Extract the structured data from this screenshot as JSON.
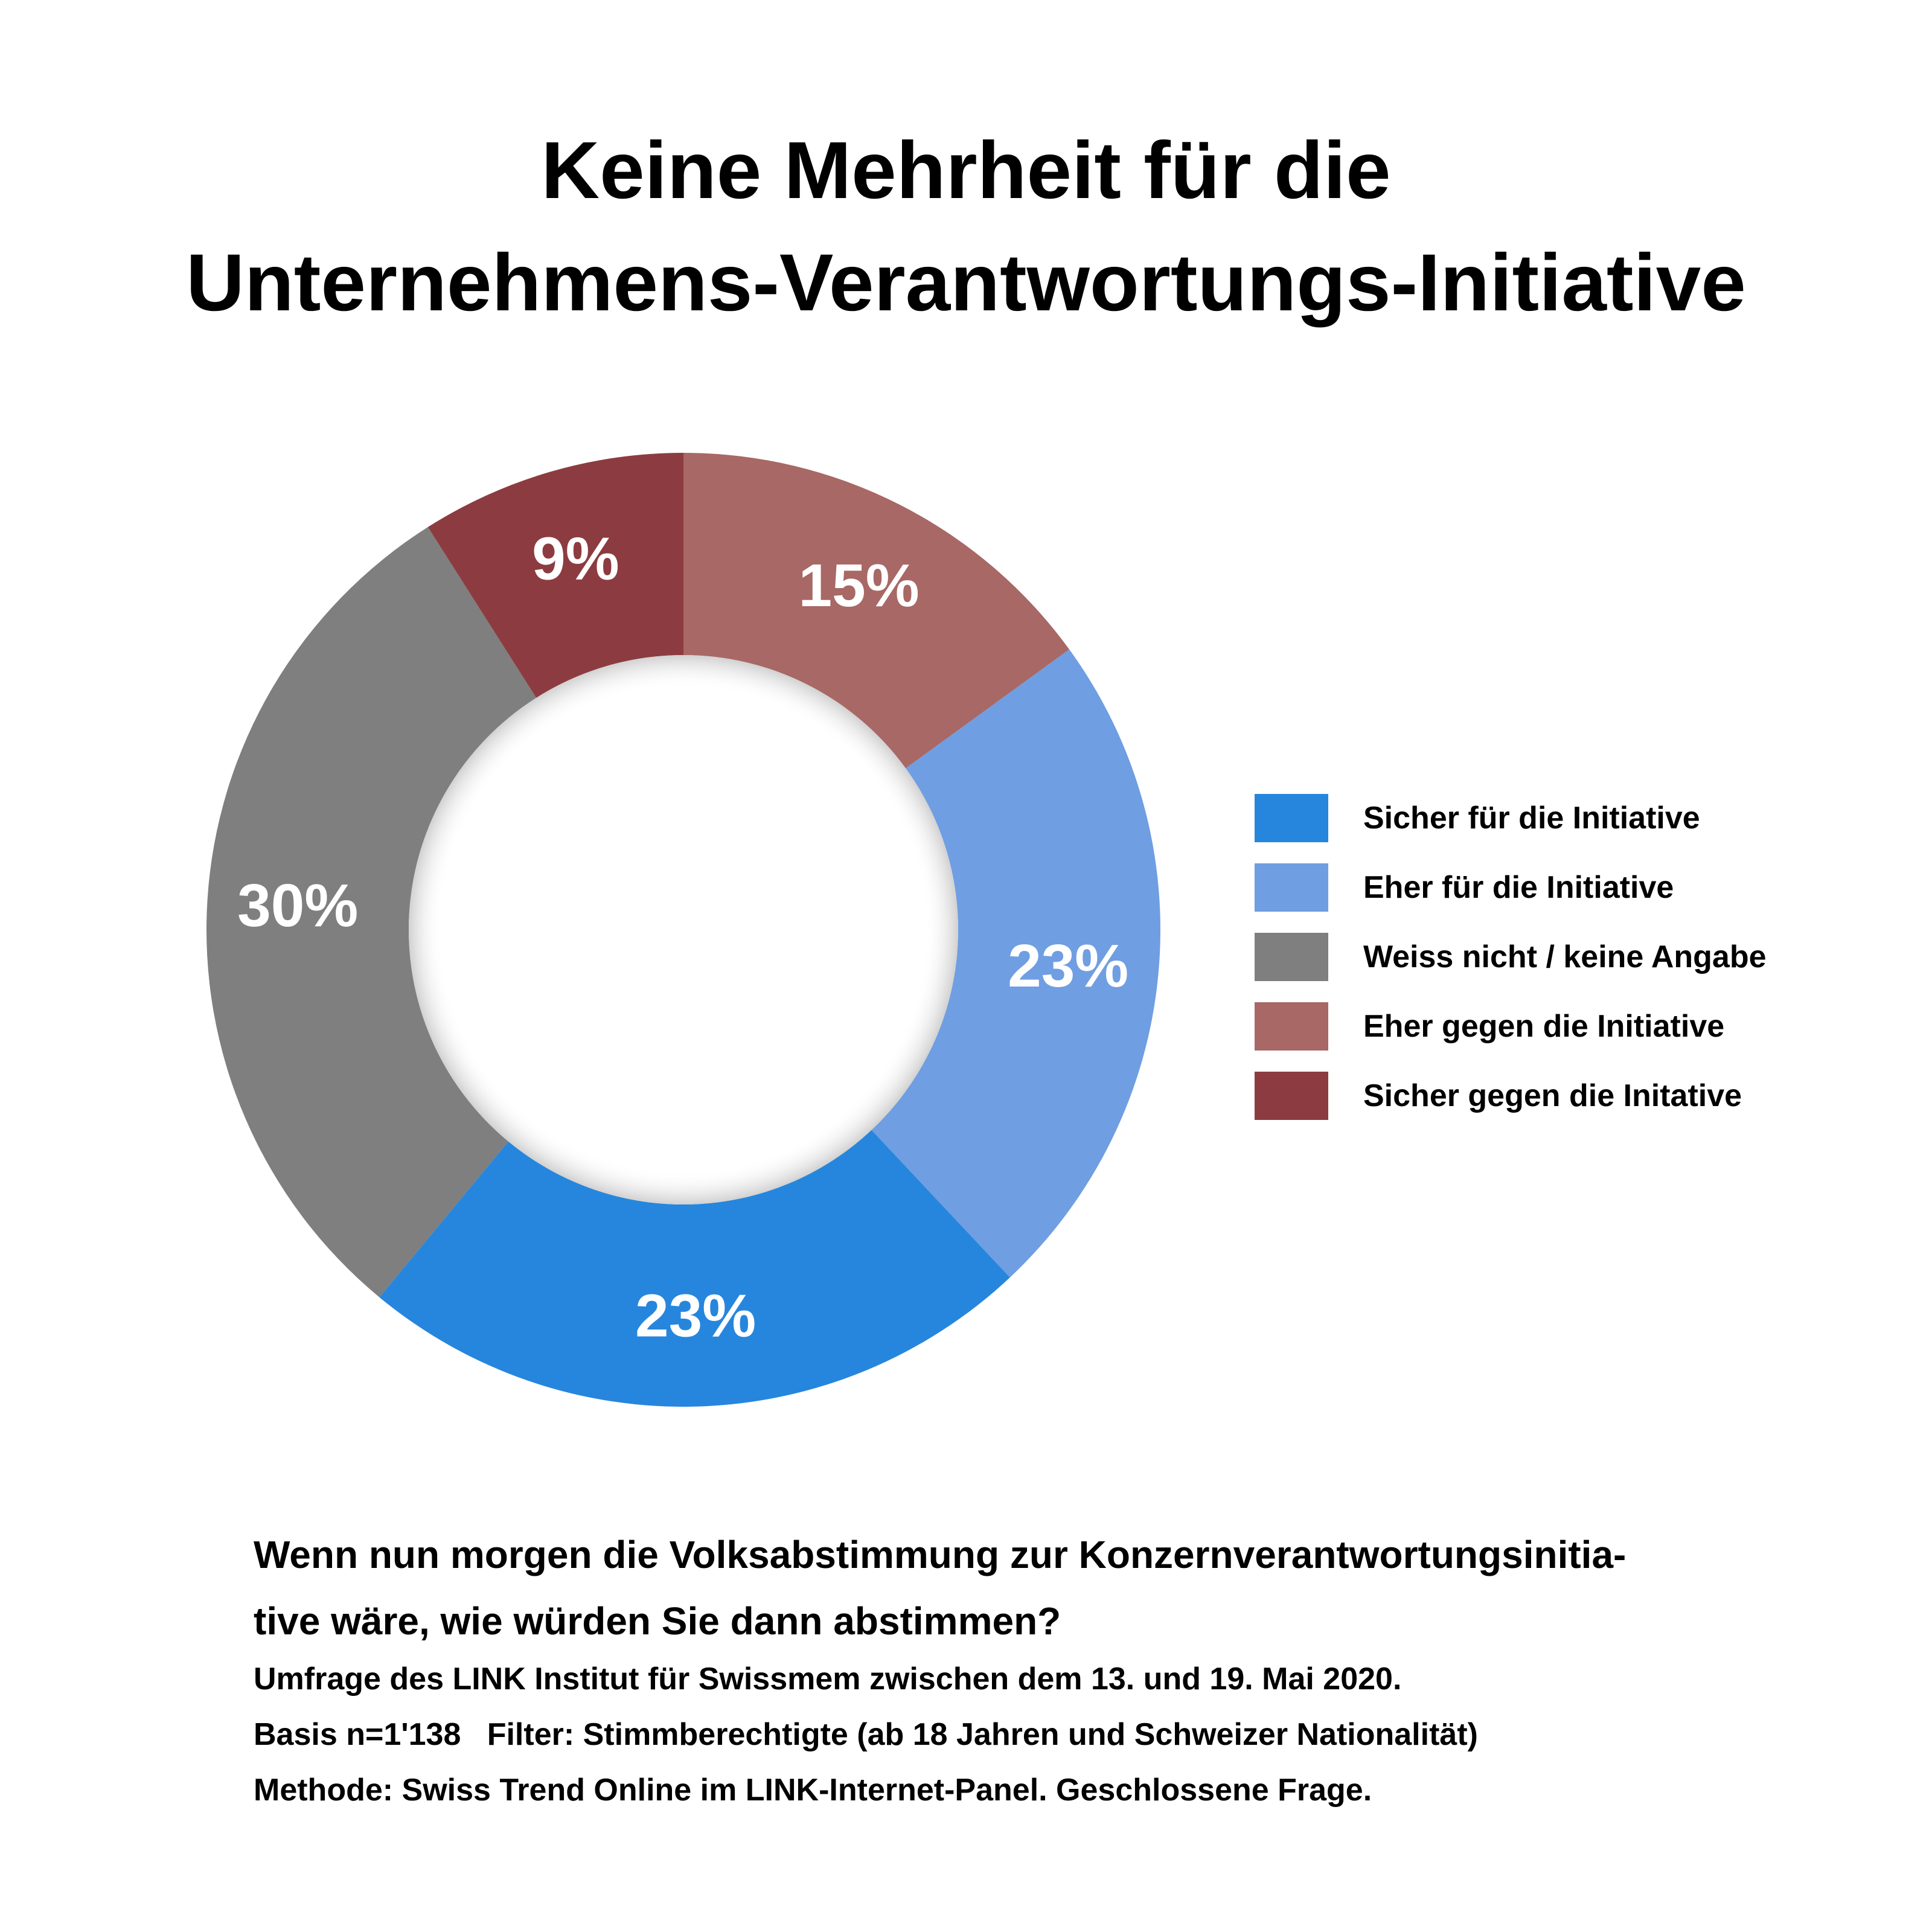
{
  "title_lines": [
    "Keine Mehrheit für die",
    "Unternehmens-Verantwortungs-Initiative"
  ],
  "chart_data": {
    "type": "pie",
    "donut": true,
    "series": [
      {
        "name": "Sicher für die Initiative",
        "value": 23,
        "label": "23%",
        "color": "#2686dd"
      },
      {
        "name": "Eher für die Initiative",
        "value": 23,
        "label": "23%",
        "color": "#6f9ee2"
      },
      {
        "name": "Weiss nicht / keine Angabe",
        "value": 30,
        "label": "30%",
        "color": "#7f7f7f"
      },
      {
        "name": "Eher gegen die Initiative",
        "value": 15,
        "label": "15%",
        "color": "#a86865"
      },
      {
        "name": "Sicher gegen die Initative",
        "value": 9,
        "label": "9%",
        "color": "#8c3c40"
      }
    ],
    "legend_position": "right"
  },
  "question_lines": [
    "Wenn nun morgen die Volksabstimmung zur Konzernverantwortungsinitia-",
    "tive wäre, wie würden Sie dann abstimmen?"
  ],
  "notes_lines": [
    "Umfrage des LINK Institut für Swissmem zwischen dem 13. und 19. Mai 2020.",
    "Basis n=1'138   Filter: Stimmberechtigte (ab 18 Jahren und Schweizer Nationalität)",
    "Methode: Swiss Trend Online im LINK-Internet-Panel. Geschlossene Frage."
  ]
}
